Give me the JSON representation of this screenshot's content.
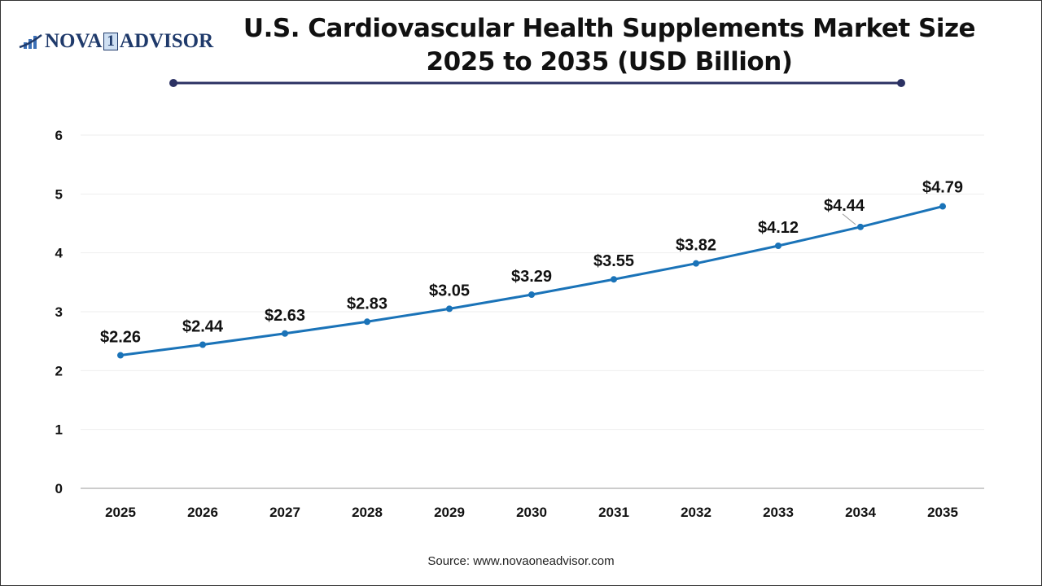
{
  "logo": {
    "text_left": "NOVA",
    "text_mid": "1",
    "text_right": "ADVISOR"
  },
  "source": "Source: www.novaoneadvisor.com",
  "chart_data": {
    "type": "line",
    "title": "U.S. Cardiovascular Health Supplements Market Size 2025 to 2035 (USD Billion)",
    "xlabel": "",
    "ylabel": "",
    "categories": [
      "2025",
      "2026",
      "2027",
      "2028",
      "2029",
      "2030",
      "2031",
      "2032",
      "2033",
      "2034",
      "2035"
    ],
    "values": [
      2.26,
      2.44,
      2.63,
      2.83,
      3.05,
      3.29,
      3.55,
      3.82,
      4.12,
      4.44,
      4.79
    ],
    "data_labels": [
      "$2.26",
      "$2.44",
      "$2.63",
      "$2.83",
      "$3.05",
      "$3.29",
      "$3.55",
      "$3.82",
      "$4.12",
      "$4.44",
      "$4.79"
    ],
    "ylim": [
      0,
      6
    ],
    "yticks": [
      "0",
      "1",
      "2",
      "3",
      "4",
      "5",
      "6"
    ],
    "grid": true,
    "line_color": "#1a73b8",
    "accent_color": "#2b3163"
  }
}
